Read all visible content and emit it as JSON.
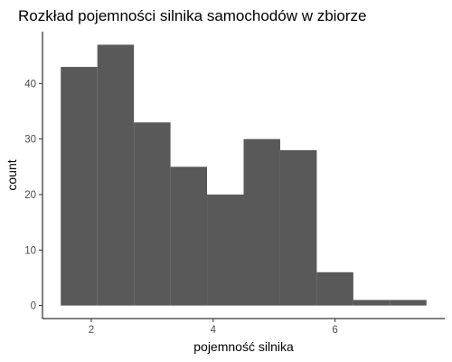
{
  "chart_data": {
    "type": "bar",
    "subtype": "histogram",
    "title": "Rozkład pojemności silnika samochodów w zbiorze",
    "xlabel": "pojemność silnika",
    "ylabel": "count",
    "bins": [
      {
        "start": 1.5,
        "end": 2.1,
        "count": 43
      },
      {
        "start": 2.1,
        "end": 2.7,
        "count": 47
      },
      {
        "start": 2.7,
        "end": 3.3,
        "count": 33
      },
      {
        "start": 3.3,
        "end": 3.9,
        "count": 25
      },
      {
        "start": 3.9,
        "end": 4.5,
        "count": 20
      },
      {
        "start": 4.5,
        "end": 5.1,
        "count": 30
      },
      {
        "start": 5.1,
        "end": 5.7,
        "count": 28
      },
      {
        "start": 5.7,
        "end": 6.3,
        "count": 6
      },
      {
        "start": 6.3,
        "end": 6.9,
        "count": 1
      },
      {
        "start": 6.9,
        "end": 7.5,
        "count": 1
      }
    ],
    "xlim": [
      1.2,
      7.8
    ],
    "ylim": [
      -2.35,
      49.35
    ],
    "xticks": [
      2,
      4,
      6
    ],
    "yticks": [
      0,
      10,
      20,
      30,
      40
    ],
    "grid": false,
    "legend": "none",
    "colors": {
      "bar": "#595959",
      "background": "#ffffff",
      "axis": "#000000"
    }
  }
}
